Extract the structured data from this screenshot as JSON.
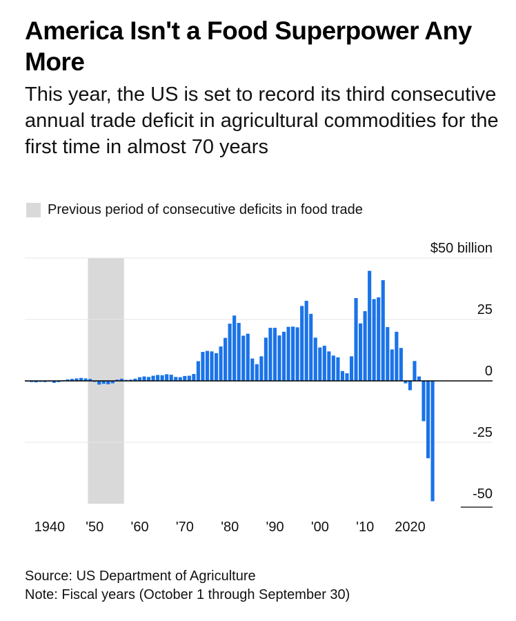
{
  "title": "America Isn't a Food Superpower Any More",
  "subtitle": "This year, the US is set to record its third consecutive annual trade deficit in agricultural commodities for the first time in almost 70 years",
  "legend": {
    "shaded_label": "Previous period of consecutive deficits in food trade",
    "shaded_color": "#d9d9d9"
  },
  "source": "Source: US Department of Agriculture",
  "note": "Note: Fiscal years (October 1 through September 30)",
  "chart_data": {
    "type": "bar",
    "bar_color": "#1a73e8",
    "title": "America Isn't a Food Superpower Any More",
    "xlabel": "",
    "ylabel": "",
    "ylim": [
      -50,
      50
    ],
    "x_range": [
      1935,
      2026
    ],
    "grid": true,
    "y_ticks": [
      {
        "value": 50,
        "label": "$50 billion"
      },
      {
        "value": 25,
        "label": "25"
      },
      {
        "value": 0,
        "label": "0"
      },
      {
        "value": -25,
        "label": "-25"
      },
      {
        "value": -50,
        "label": "-50"
      }
    ],
    "x_ticks": [
      {
        "year": 1940,
        "label": "1940"
      },
      {
        "year": 1950,
        "label": "'50"
      },
      {
        "year": 1960,
        "label": "'60"
      },
      {
        "year": 1970,
        "label": "'70"
      },
      {
        "year": 1980,
        "label": "'80"
      },
      {
        "year": 1990,
        "label": "'90"
      },
      {
        "year": 2000,
        "label": "'00"
      },
      {
        "year": 2010,
        "label": "'10"
      },
      {
        "year": 2020,
        "label": "2020"
      }
    ],
    "shaded_period": [
      1949,
      1956
    ],
    "years": [
      1935,
      1936,
      1937,
      1938,
      1939,
      1940,
      1941,
      1942,
      1943,
      1944,
      1945,
      1946,
      1947,
      1948,
      1949,
      1950,
      1951,
      1952,
      1953,
      1954,
      1955,
      1956,
      1957,
      1958,
      1959,
      1960,
      1961,
      1962,
      1963,
      1964,
      1965,
      1966,
      1967,
      1968,
      1969,
      1970,
      1971,
      1972,
      1973,
      1974,
      1975,
      1976,
      1977,
      1978,
      1979,
      1980,
      1981,
      1982,
      1983,
      1984,
      1985,
      1986,
      1987,
      1988,
      1989,
      1990,
      1991,
      1992,
      1993,
      1994,
      1995,
      1996,
      1997,
      1998,
      1999,
      2000,
      2001,
      2002,
      2003,
      2004,
      2005,
      2006,
      2007,
      2008,
      2009,
      2010,
      2011,
      2012,
      2013,
      2014,
      2015,
      2016,
      2017,
      2018,
      2019,
      2020,
      2021,
      2022,
      2023,
      2024,
      2025
    ],
    "values": [
      -0.3,
      -0.5,
      -0.6,
      -0.4,
      -0.5,
      -0.3,
      -0.8,
      -0.5,
      0.3,
      0.6,
      0.8,
      1.0,
      1.2,
      1.0,
      0.8,
      -0.4,
      -1.5,
      -1.2,
      -1.4,
      -1.0,
      0.5,
      0.9,
      0.4,
      0.5,
      0.9,
      1.5,
      1.8,
      1.6,
      2.1,
      2.4,
      2.3,
      2.7,
      2.5,
      1.6,
      1.5,
      2.0,
      2.1,
      2.8,
      8.0,
      11.8,
      12.2,
      12.0,
      11.3,
      14.0,
      17.5,
      23.3,
      26.6,
      23.6,
      18.4,
      19.2,
      9.1,
      6.8,
      10.0,
      17.6,
      21.6,
      21.6,
      18.5,
      20.0,
      22.0,
      22.1,
      21.8,
      30.5,
      32.6,
      27.3,
      17.6,
      13.6,
      14.3,
      12.0,
      10.3,
      9.6,
      4.0,
      3.1,
      10.0,
      33.7,
      23.4,
      28.4,
      44.8,
      33.3,
      34.0,
      41.0,
      21.9,
      12.8,
      20.0,
      13.4,
      -1.0,
      -3.8,
      8.1,
      1.8,
      -16.4,
      -31.5,
      -49.0
    ]
  }
}
